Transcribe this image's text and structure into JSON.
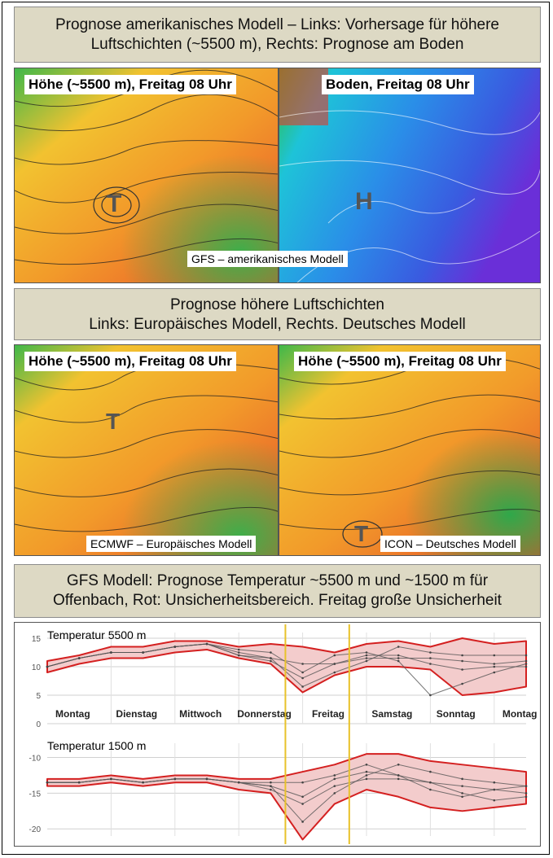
{
  "banners": {
    "top": [
      "Prognose amerikanisches Modell – Links: Vorhersage für höhere",
      "Luftschichten (~5500 m), Rechts: Prognose am Boden"
    ],
    "middle": [
      "Prognose höhere Luftschichten",
      "Links: Europäisches Modell, Rechts. Deutsches Modell"
    ],
    "bottom": [
      "GFS Modell: Prognose Temperatur ~5500 m und ~1500 m für",
      "Offenbach, Rot: Unsicherheitsbereich. Freitag große Unsicherheit"
    ]
  },
  "maps": {
    "gfs_height": {
      "label": "Höhe (~5500 m), Freitag 08 Uhr",
      "symbol": "T"
    },
    "gfs_ground": {
      "label": "Boden, Freitag 08 Uhr",
      "symbol": "H"
    },
    "gfs_source": "GFS – amerikanisches Modell",
    "ecmwf": {
      "label": "Höhe (~5500 m), Freitag 08 Uhr",
      "symbol": "T",
      "source": "ECMWF – Europäisches Modell"
    },
    "icon": {
      "label": "Höhe (~5500 m), Freitag 08 Uhr",
      "symbol": "T",
      "source": "ICON – Deutsches Modell"
    }
  },
  "colors": {
    "banner_bg": "#ddd9c4",
    "uncertainty": "#d42020",
    "uncertainty_fill": "#f3cccc",
    "marker": "#e8c22a"
  },
  "chart_data": [
    {
      "type": "line",
      "title": "Temperatur  5500 m",
      "categories": [
        "Montag",
        "Dienstag",
        "Mittwoch",
        "Donnerstag",
        "Freitag",
        "Samstag",
        "Sonntag",
        "Montag"
      ],
      "yticks": [
        15,
        10,
        5,
        0
      ],
      "ylim": [
        0,
        16
      ],
      "x": [
        0,
        0.5,
        1,
        1.5,
        2,
        2.5,
        3,
        3.5,
        4,
        4.5,
        5,
        5.5,
        6,
        6.5,
        7,
        7.5
      ],
      "series": [
        {
          "values": [
            10,
            11.5,
            12.5,
            12.5,
            13.5,
            14,
            12,
            11,
            8,
            10.5,
            11.5,
            11.5,
            11.5,
            11,
            10.5,
            11
          ]
        },
        {
          "values": [
            10,
            11.5,
            12.5,
            12.5,
            13.5,
            14,
            12.5,
            11.5,
            6.5,
            9,
            11,
            13.5,
            12.5,
            12,
            12,
            12
          ]
        },
        {
          "values": [
            10,
            11.5,
            12.5,
            12.5,
            13.5,
            14,
            13,
            12.5,
            9,
            12,
            12.5,
            11,
            5,
            7,
            9,
            10.5
          ]
        },
        {
          "values": [
            10,
            11.5,
            12.5,
            12.5,
            13.5,
            14,
            12,
            11.5,
            10.5,
            10.5,
            12,
            12,
            10.5,
            9.5,
            10,
            10
          ]
        }
      ],
      "envelope_upper": [
        11,
        12,
        13.5,
        13.5,
        14.5,
        14.5,
        13.5,
        14,
        13.5,
        12.5,
        14,
        14.5,
        13.5,
        15,
        14,
        14.5
      ],
      "envelope_lower": [
        9,
        10.5,
        11.5,
        11.5,
        12.5,
        13,
        11.5,
        10.5,
        5.5,
        8.5,
        10,
        10,
        9.5,
        5,
        5.5,
        6.5
      ],
      "markers_x": [
        3.73,
        4.73
      ]
    },
    {
      "type": "line",
      "title": "Temperatur  1500 m",
      "categories": [],
      "yticks": [
        -10,
        -15,
        -20
      ],
      "ylim": [
        -21,
        -8
      ],
      "x": [
        0,
        0.5,
        1,
        1.5,
        2,
        2.5,
        3,
        3.5,
        4,
        4.5,
        5,
        5.5,
        6,
        6.5,
        7,
        7.5
      ],
      "series": [
        {
          "values": [
            -13.5,
            -13.5,
            -13,
            -13.5,
            -13,
            -13,
            -13.5,
            -14,
            -15.5,
            -13,
            -12,
            -12.5,
            -13.5,
            -14,
            -14.5,
            -15
          ]
        },
        {
          "values": [
            -13.5,
            -13.5,
            -13,
            -13.5,
            -13,
            -13,
            -13.5,
            -14,
            -19,
            -15,
            -12.5,
            -11,
            -12,
            -13,
            -13.5,
            -14
          ]
        },
        {
          "values": [
            -13.5,
            -13.5,
            -13,
            -13.5,
            -13,
            -13,
            -13.5,
            -13.5,
            -13.5,
            -12.5,
            -11,
            -12.5,
            -14.5,
            -15.5,
            -14.5,
            -14
          ]
        },
        {
          "values": [
            -13.5,
            -13.5,
            -13,
            -13.5,
            -13,
            -13,
            -13.5,
            -14.5,
            -16.5,
            -14,
            -13,
            -13,
            -13.5,
            -15,
            -16,
            -15.5
          ]
        }
      ],
      "envelope_upper": [
        -13,
        -13,
        -12.5,
        -13,
        -12.5,
        -12.5,
        -13,
        -13,
        -12,
        -11,
        -9.5,
        -9.5,
        -10.5,
        -11,
        -11.5,
        -12
      ],
      "envelope_lower": [
        -14,
        -14,
        -13.5,
        -14,
        -13.5,
        -13.5,
        -14.5,
        -15,
        -21.5,
        -16.5,
        -14.5,
        -15.5,
        -17,
        -17.5,
        -17,
        -16.5
      ],
      "markers_x": [
        3.73,
        4.73
      ]
    }
  ]
}
